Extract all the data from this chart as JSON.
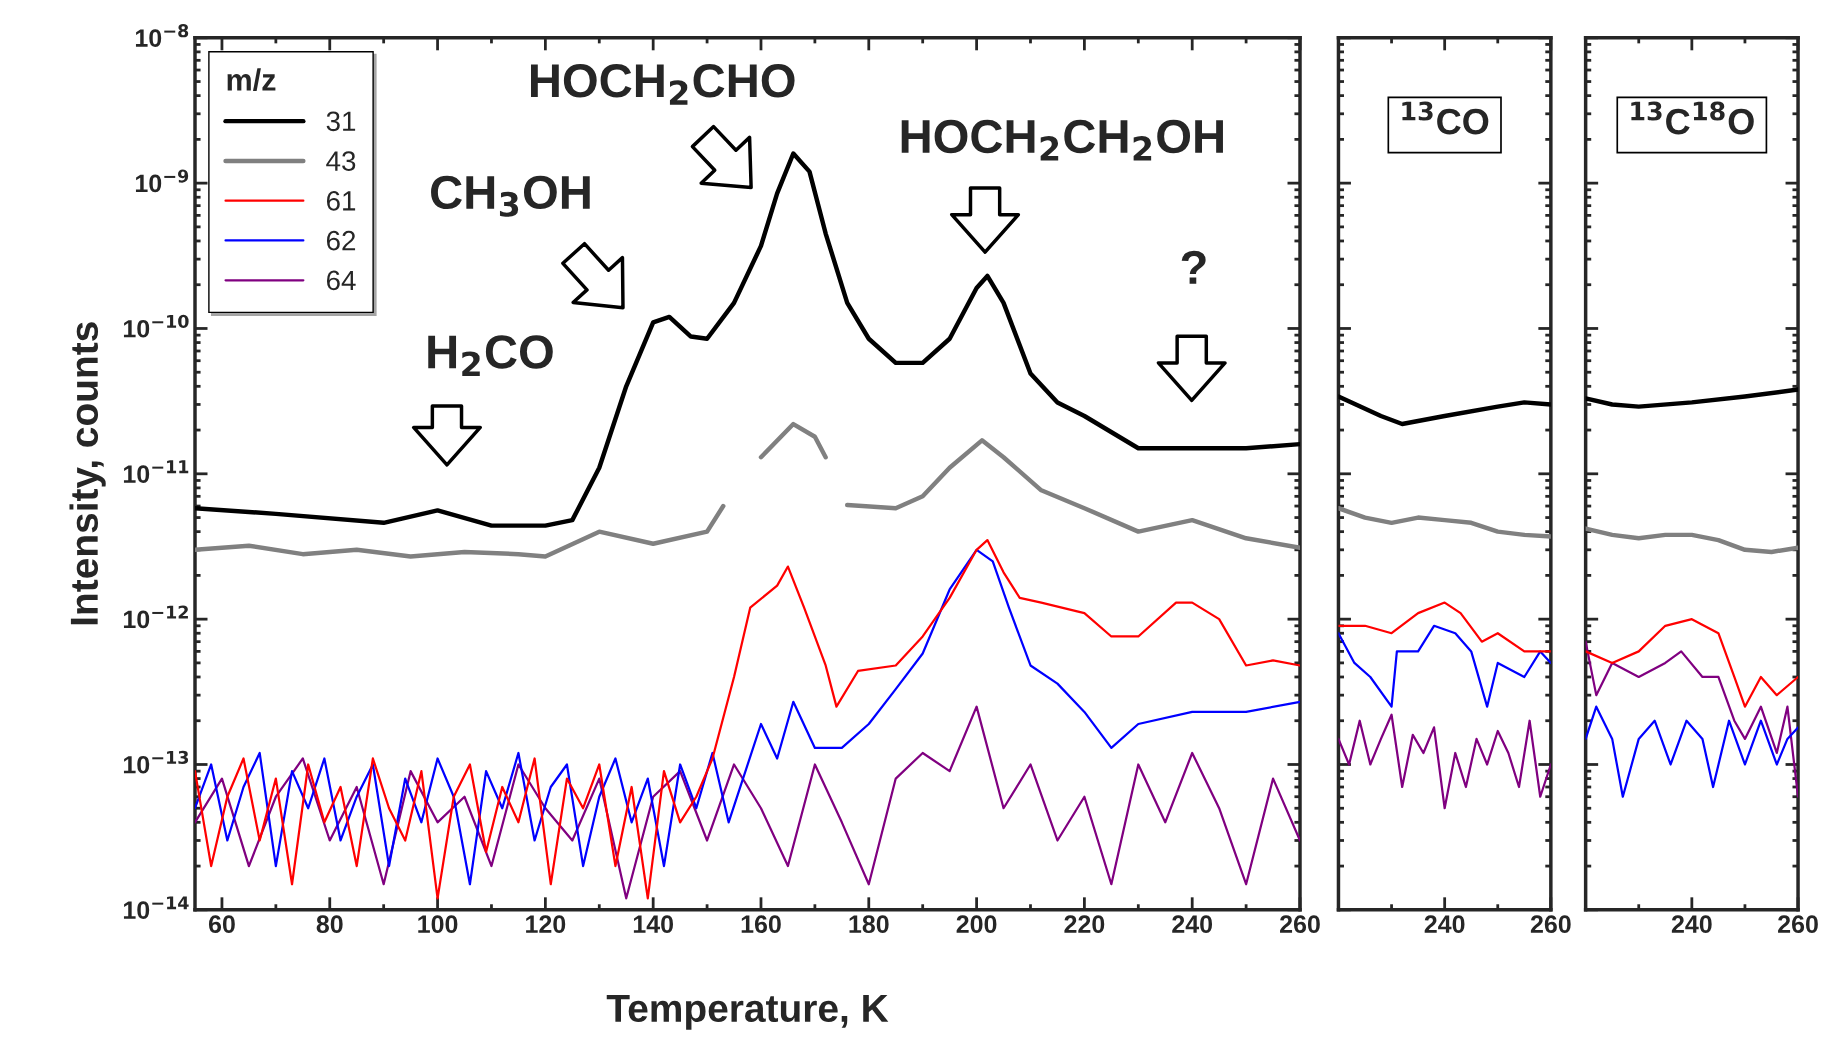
{
  "chart_data": [
    {
      "type": "line",
      "xlabel": "Temperature, K",
      "ylabel": "Intensity, counts",
      "legend": "top left",
      "legend_title": "m/z",
      "log": true,
      "xlim": [
        55,
        260
      ],
      "xticks": [
        60,
        80,
        100,
        120,
        140,
        160,
        180,
        200,
        220,
        240,
        260
      ],
      "ylim": [
        1e-14,
        1e-08
      ],
      "yticks": [
        {
          "value": 1e-14,
          "label": "10$^{−14}$"
        },
        {
          "value": 1e-13,
          "label": "10$^{−13}$"
        },
        {
          "value": 1e-12,
          "label": "10$^{−12}$"
        },
        {
          "value": 1e-11,
          "label": "10$^{−11}$"
        },
        {
          "value": 1e-10,
          "label": "10$^{−10}$"
        },
        {
          "value": 1e-09,
          "label": "10$^{−9}$"
        },
        {
          "value": 1e-08,
          "label": "10$^{−8}$"
        }
      ],
      "annotations": [
        "H$_{2}$CO",
        "CH$_{3}$OH",
        "HOCH$_{2}$CHO",
        "HOCH$_{2}$CH$_{2}$OH",
        "?"
      ],
      "series": [
        {
          "name": "31",
          "color": "#000000",
          "x": [
            55,
            70,
            90,
            100,
            110,
            120,
            125,
            130,
            135,
            140,
            143,
            147,
            150,
            155,
            160,
            163,
            166,
            169,
            172,
            176,
            180,
            185,
            190,
            195,
            200,
            202,
            205,
            210,
            215,
            220,
            230,
            240,
            250,
            260
          ],
          "values": [
            5.8e-12,
            5.3e-12,
            4.6e-12,
            5.6e-12,
            4.4e-12,
            4.4e-12,
            4.8e-12,
            1.1e-11,
            4e-11,
            1.1e-10,
            1.2e-10,
            8.8e-11,
            8.5e-11,
            1.5e-10,
            3.7e-10,
            8.5e-10,
            1.6e-09,
            1.2e-09,
            4.5e-10,
            1.5e-10,
            8.5e-11,
            5.8e-11,
            5.8e-11,
            8.5e-11,
            1.9e-10,
            2.3e-10,
            1.5e-10,
            4.9e-11,
            3.1e-11,
            2.5e-11,
            1.5e-11,
            1.5e-11,
            1.5e-11,
            1.6e-11
          ]
        },
        {
          "name": "43",
          "color": "#808080",
          "x": [
            55,
            65,
            75,
            85,
            95,
            105,
            115,
            120,
            130,
            140,
            150,
            153,
            157,
            160,
            166,
            170,
            172,
            174,
            176,
            185,
            190,
            195,
            201,
            205,
            212,
            220,
            230,
            240,
            250,
            260
          ],
          "values": [
            3e-12,
            3.2e-12,
            2.8e-12,
            3e-12,
            2.7e-12,
            2.9e-12,
            2.8e-12,
            2.7e-12,
            4e-12,
            3.3e-12,
            4e-12,
            6e-12,
            null,
            1.3e-11,
            2.2e-11,
            1.8e-11,
            1.3e-11,
            null,
            6.1e-12,
            5.8e-12,
            7e-12,
            1.1e-11,
            1.7e-11,
            1.3e-11,
            7.7e-12,
            5.8e-12,
            4e-12,
            4.8e-12,
            3.6e-12,
            3.1e-12
          ]
        },
        {
          "name": "61",
          "color": "#ff0000",
          "x": [
            55,
            58,
            61,
            64,
            67,
            70,
            73,
            76,
            79,
            82,
            85,
            88,
            91,
            94,
            97,
            100,
            103,
            106,
            109,
            112,
            115,
            118,
            121,
            124,
            127,
            130,
            133,
            136,
            139,
            142,
            145,
            148,
            151,
            155,
            158,
            163,
            165,
            168,
            172,
            174,
            178,
            185,
            190,
            195,
            200,
            202,
            205,
            208,
            212,
            220,
            225,
            230,
            237,
            240,
            245,
            250,
            255,
            260
          ],
          "values": [
            9e-14,
            2e-14,
            6e-14,
            1.1e-13,
            3e-14,
            8e-14,
            1.5e-14,
            1e-13,
            4e-14,
            7e-14,
            2e-14,
            1.1e-13,
            5e-14,
            3e-14,
            9e-14,
            1.2e-14,
            6e-14,
            1e-13,
            2.5e-14,
            7e-14,
            4e-14,
            1.1e-13,
            1.5e-14,
            8e-14,
            5e-14,
            1e-13,
            2e-14,
            7e-14,
            1.2e-14,
            9e-14,
            4e-14,
            6e-14,
            1.1e-13,
            4e-13,
            1.2e-12,
            1.7e-12,
            2.3e-12,
            1.2e-12,
            4.8e-13,
            2.5e-13,
            4.4e-13,
            4.8e-13,
            7.6e-13,
            1.4e-12,
            3e-12,
            3.5e-12,
            2.1e-12,
            1.4e-12,
            1.3e-12,
            1.1e-12,
            7.6e-13,
            7.6e-13,
            1.3e-12,
            1.3e-12,
            1e-12,
            4.8e-13,
            5.2e-13,
            4.8e-13
          ]
        },
        {
          "name": "62",
          "color": "#0000ff",
          "x": [
            55,
            58,
            61,
            64,
            67,
            70,
            73,
            76,
            79,
            82,
            85,
            88,
            91,
            94,
            97,
            100,
            103,
            106,
            109,
            112,
            115,
            118,
            121,
            124,
            127,
            130,
            133,
            136,
            139,
            142,
            145,
            148,
            151,
            154,
            160,
            163,
            166,
            170,
            175,
            180,
            185,
            190,
            195,
            200,
            203,
            206,
            210,
            215,
            220,
            225,
            230,
            240,
            250,
            260
          ],
          "values": [
            5e-14,
            1e-13,
            3e-14,
            7e-14,
            1.2e-13,
            2e-14,
            9e-14,
            5e-14,
            1.1e-13,
            3e-14,
            6e-14,
            1e-13,
            2e-14,
            8e-14,
            4e-14,
            1.1e-13,
            6e-14,
            1.5e-14,
            9e-14,
            5e-14,
            1.2e-13,
            3e-14,
            7e-14,
            1e-13,
            2e-14,
            6e-14,
            1.1e-13,
            4e-14,
            8e-14,
            2e-14,
            1e-13,
            5e-14,
            1.2e-13,
            4e-14,
            1.9e-13,
            1.1e-13,
            2.7e-13,
            1.3e-13,
            1.3e-13,
            1.9e-13,
            3.3e-13,
            5.8e-13,
            1.6e-12,
            3e-12,
            2.5e-12,
            1.2e-12,
            4.8e-13,
            3.6e-13,
            2.3e-13,
            1.3e-13,
            1.9e-13,
            2.3e-13,
            2.3e-13,
            2.7e-13
          ]
        },
        {
          "name": "64",
          "color": "#800080",
          "x": [
            55,
            60,
            65,
            70,
            75,
            80,
            85,
            90,
            95,
            100,
            105,
            110,
            115,
            120,
            125,
            130,
            135,
            140,
            145,
            150,
            155,
            160,
            165,
            170,
            175,
            180,
            185,
            190,
            195,
            200,
            205,
            210,
            215,
            220,
            225,
            230,
            235,
            240,
            245,
            250,
            255,
            260
          ],
          "values": [
            4e-14,
            8e-14,
            2e-14,
            6e-14,
            1.1e-13,
            3e-14,
            7e-14,
            1.5e-14,
            9e-14,
            4e-14,
            6e-14,
            2e-14,
            1e-13,
            5e-14,
            3e-14,
            8e-14,
            1.2e-14,
            6e-14,
            9e-14,
            3e-14,
            1e-13,
            5e-14,
            2e-14,
            1e-13,
            4e-14,
            1.5e-14,
            8e-14,
            1.2e-13,
            9e-14,
            2.5e-13,
            5e-14,
            1e-13,
            3e-14,
            6e-14,
            1.5e-14,
            1e-13,
            4e-14,
            1.2e-13,
            5e-14,
            1.5e-14,
            8e-14,
            3e-14
          ]
        }
      ]
    },
    {
      "type": "line",
      "title": "$^{13}$CO",
      "log": true,
      "tick_labels": "x",
      "xlim": [
        220,
        260
      ],
      "xticks": [
        240,
        260
      ],
      "ylim": [
        1e-14,
        1e-08
      ],
      "series": [
        {
          "color": "#000000",
          "x": [
            220,
            228,
            232,
            240,
            250,
            255,
            260
          ],
          "values": [
            3.4e-11,
            2.5e-11,
            2.2e-11,
            2.5e-11,
            2.9e-11,
            3.1e-11,
            3e-11
          ]
        },
        {
          "color": "#808080",
          "x": [
            220,
            225,
            230,
            235,
            240,
            245,
            250,
            255,
            260
          ],
          "values": [
            5.8e-12,
            5e-12,
            4.6e-12,
            5e-12,
            4.8e-12,
            4.6e-12,
            4e-12,
            3.8e-12,
            3.7e-12
          ]
        },
        {
          "color": "#ff0000",
          "x": [
            220,
            225,
            230,
            235,
            240,
            243,
            247,
            250,
            255,
            260
          ],
          "values": [
            9e-13,
            9e-13,
            8e-13,
            1.1e-12,
            1.3e-12,
            1.1e-12,
            7e-13,
            8e-13,
            6e-13,
            6e-13
          ]
        },
        {
          "color": "#0000ff",
          "x": [
            220,
            223,
            226,
            230,
            231,
            235,
            238,
            242,
            245,
            248,
            250,
            255,
            258,
            260
          ],
          "values": [
            8e-13,
            5e-13,
            4e-13,
            2.5e-13,
            6e-13,
            6e-13,
            9e-13,
            8e-13,
            6e-13,
            2.5e-13,
            5e-13,
            4e-13,
            6e-13,
            5e-13
          ]
        },
        {
          "color": "#800080",
          "x": [
            220,
            222,
            224,
            226,
            228,
            230,
            232,
            234,
            236,
            238,
            240,
            242,
            244,
            246,
            248,
            250,
            252,
            254,
            256,
            258,
            260
          ],
          "values": [
            1.5e-13,
            1e-13,
            2e-13,
            1e-13,
            1.5e-13,
            2.2e-13,
            7e-14,
            1.6e-13,
            1.2e-13,
            1.8e-13,
            5e-14,
            1.2e-13,
            7e-14,
            1.5e-13,
            1e-13,
            1.7e-13,
            1.2e-13,
            7e-14,
            2e-13,
            6e-14,
            1e-13
          ]
        }
      ]
    },
    {
      "type": "line",
      "title": "$^{13}$C$^{18}$O",
      "log": true,
      "tick_labels": "x",
      "xlim": [
        220,
        260
      ],
      "xticks": [
        240,
        260
      ],
      "ylim": [
        1e-14,
        1e-08
      ],
      "series": [
        {
          "color": "#000000",
          "x": [
            220,
            225,
            230,
            240,
            250,
            260
          ],
          "values": [
            3.3e-11,
            3e-11,
            2.9e-11,
            3.1e-11,
            3.4e-11,
            3.8e-11
          ]
        },
        {
          "color": "#808080",
          "x": [
            220,
            225,
            230,
            235,
            240,
            245,
            250,
            255,
            260
          ],
          "values": [
            4.2e-12,
            3.8e-12,
            3.6e-12,
            3.8e-12,
            3.8e-12,
            3.5e-12,
            3e-12,
            2.9e-12,
            3.1e-12
          ]
        },
        {
          "color": "#ff0000",
          "x": [
            220,
            225,
            230,
            235,
            240,
            245,
            248,
            250,
            253,
            256,
            260
          ],
          "values": [
            6e-13,
            5e-13,
            6e-13,
            9e-13,
            1e-12,
            8e-13,
            4e-13,
            2.5e-13,
            4e-13,
            3e-13,
            4e-13
          ]
        },
        {
          "color": "#0000ff",
          "x": [
            220,
            222,
            225,
            227,
            230,
            233,
            236,
            239,
            242,
            244,
            247,
            250,
            253,
            256,
            258,
            260
          ],
          "values": [
            1.5e-13,
            2.5e-13,
            1.5e-13,
            6e-14,
            1.5e-13,
            2e-13,
            1e-13,
            2e-13,
            1.5e-13,
            7e-14,
            2e-13,
            1e-13,
            2e-13,
            1e-13,
            1.5e-13,
            1.8e-13
          ]
        },
        {
          "color": "#800080",
          "x": [
            220,
            222,
            225,
            230,
            235,
            238,
            242,
            245,
            248,
            250,
            253,
            256,
            258,
            260
          ],
          "values": [
            7e-13,
            3e-13,
            5e-13,
            4e-13,
            5e-13,
            6e-13,
            4e-13,
            4e-13,
            2e-13,
            1.5e-13,
            2.5e-13,
            1.2e-13,
            2.5e-13,
            6e-14
          ]
        }
      ]
    }
  ]
}
